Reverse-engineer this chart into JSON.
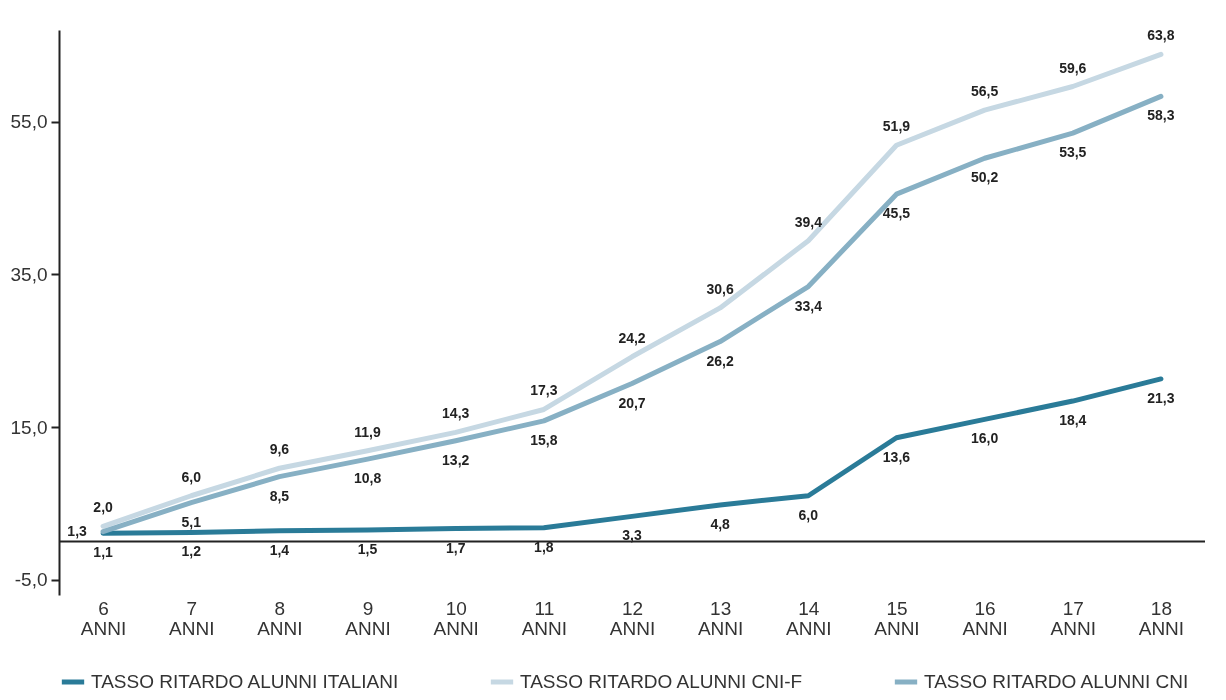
{
  "chart_data": {
    "type": "line",
    "categories": [
      "6 ANNI",
      "7 ANNI",
      "8 ANNI",
      "9 ANNI",
      "10 ANNI",
      "11 ANNI",
      "12 ANNI",
      "13 ANNI",
      "14 ANNI",
      "15 ANNI",
      "16 ANNI",
      "17 ANNI",
      "18 ANNI"
    ],
    "ylim": [
      -7,
      67
    ],
    "yticks": [
      {
        "value": -5,
        "label": "-5,0"
      },
      {
        "value": 15,
        "label": "15,0"
      },
      {
        "value": 35,
        "label": "35,0"
      },
      {
        "value": 55,
        "label": "55,0"
      }
    ],
    "grid": false,
    "legend": "bottom",
    "marker": "none",
    "line_style": "solid",
    "ref_lines": [
      {
        "axis": "y",
        "value": 0,
        "color": "#222222"
      }
    ],
    "series": [
      {
        "name": "TASSO RITARDO ALUNNI ITALIANI",
        "color": "#2a7b98",
        "values": [
          1.1,
          1.2,
          1.4,
          1.5,
          1.7,
          1.8,
          3.3,
          4.8,
          6.0,
          13.6,
          16.0,
          18.4,
          21.3
        ],
        "value_labels": [
          "1,1",
          "1,2",
          "1,4",
          "1,5",
          "1,7",
          "1,8",
          "3,3",
          "4,8",
          "6,0",
          "13,6",
          "16,0",
          "18,4",
          "21,3"
        ]
      },
      {
        "name": "TASSO RITARDO ALUNNI CNI-F",
        "color": "#c6d8e3",
        "values": [
          2.0,
          6.0,
          9.6,
          11.9,
          14.3,
          17.3,
          24.2,
          30.6,
          39.4,
          51.9,
          56.5,
          59.6,
          63.8
        ],
        "value_labels": [
          "2,0",
          "6,0",
          "9,6",
          "11,9",
          "14,3",
          "17,3",
          "24,2",
          "30,6",
          "39,4",
          "51,9",
          "56,5",
          "59,6",
          "63,8"
        ]
      },
      {
        "name": "TASSO RITARDO ALUNNI CNI",
        "color": "#87b0c4",
        "values": [
          1.3,
          5.1,
          8.5,
          10.8,
          13.2,
          15.8,
          20.7,
          26.2,
          33.4,
          45.5,
          50.2,
          53.5,
          58.3
        ],
        "value_labels": [
          "1,3",
          "5,1",
          "8,5",
          "10,8",
          "13,2",
          "15,8",
          "20,7",
          "26,2",
          "33,4",
          "45,5",
          "50,2",
          "53,5",
          "58,3"
        ]
      }
    ]
  }
}
